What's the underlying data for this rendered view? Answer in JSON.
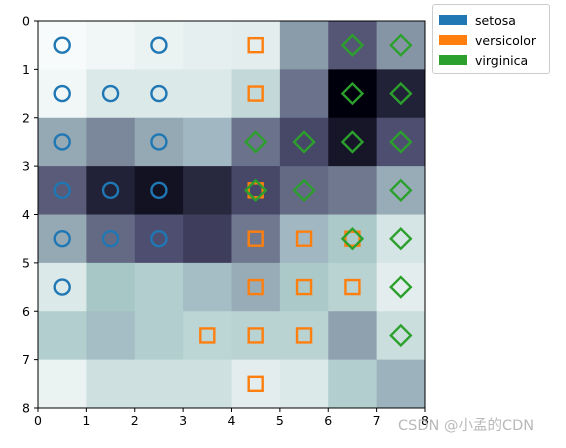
{
  "chart_data": {
    "type": "heatmap",
    "title": "",
    "xlabel": "",
    "ylabel": "",
    "xlim": [
      0,
      8
    ],
    "ylim": [
      8,
      0
    ],
    "y_inverted": true,
    "colormap": "bone_r",
    "xticks": [
      "0",
      "1",
      "2",
      "3",
      "4",
      "5",
      "6",
      "7",
      "8"
    ],
    "yticks": [
      "0",
      "1",
      "2",
      "3",
      "4",
      "5",
      "6",
      "7",
      "8"
    ],
    "grid": false,
    "legend_position": "outside-top-right",
    "cells": [
      [
        0.02,
        0.04,
        0.06,
        0.07,
        0.08,
        0.38,
        0.62,
        0.4
      ],
      [
        0.04,
        0.1,
        0.1,
        0.1,
        0.17,
        0.52,
        1.0,
        0.85
      ],
      [
        0.33,
        0.45,
        0.33,
        0.28,
        0.52,
        0.68,
        0.9,
        0.65
      ],
      [
        0.6,
        0.85,
        0.92,
        0.82,
        0.68,
        0.55,
        0.5,
        0.32
      ],
      [
        0.33,
        0.55,
        0.65,
        0.72,
        0.5,
        0.28,
        0.24,
        0.12
      ],
      [
        0.1,
        0.25,
        0.22,
        0.26,
        0.32,
        0.24,
        0.2,
        0.08
      ],
      [
        0.22,
        0.26,
        0.22,
        0.19,
        0.2,
        0.2,
        0.36,
        0.15
      ],
      [
        0.06,
        0.14,
        0.14,
        0.14,
        0.08,
        0.1,
        0.22,
        0.3
      ]
    ],
    "series": [
      {
        "name": "setosa",
        "color": "#1f77b4",
        "marker": "circle",
        "points": [
          [
            0.5,
            0.5
          ],
          [
            2.5,
            0.5
          ],
          [
            0.5,
            1.5
          ],
          [
            1.5,
            1.5
          ],
          [
            2.5,
            1.5
          ],
          [
            0.5,
            2.5
          ],
          [
            2.5,
            2.5
          ],
          [
            0.5,
            3.5
          ],
          [
            1.5,
            3.5
          ],
          [
            2.5,
            3.5
          ],
          [
            0.5,
            4.5
          ],
          [
            1.5,
            4.5
          ],
          [
            2.5,
            4.5
          ],
          [
            0.5,
            5.5
          ]
        ]
      },
      {
        "name": "versicolor",
        "color": "#ff7f0e",
        "marker": "square",
        "points": [
          [
            4.5,
            0.5
          ],
          [
            4.5,
            1.5
          ],
          [
            4.5,
            3.5
          ],
          [
            4.5,
            4.5
          ],
          [
            5.5,
            4.5
          ],
          [
            6.5,
            4.5
          ],
          [
            4.5,
            5.5
          ],
          [
            5.5,
            5.5
          ],
          [
            6.5,
            5.5
          ],
          [
            3.5,
            6.5
          ],
          [
            4.5,
            6.5
          ],
          [
            5.5,
            6.5
          ],
          [
            4.5,
            7.5
          ]
        ]
      },
      {
        "name": "virginica",
        "color": "#2ca02c",
        "marker": "diamond",
        "points": [
          [
            6.5,
            0.5
          ],
          [
            7.5,
            0.5
          ],
          [
            6.5,
            1.5
          ],
          [
            7.5,
            1.5
          ],
          [
            4.5,
            2.5
          ],
          [
            5.5,
            2.5
          ],
          [
            6.5,
            2.5
          ],
          [
            7.5,
            2.5
          ],
          [
            4.5,
            3.5
          ],
          [
            5.5,
            3.5
          ],
          [
            7.5,
            3.5
          ],
          [
            6.5,
            4.5
          ],
          [
            7.5,
            4.5
          ],
          [
            7.5,
            5.5
          ],
          [
            7.5,
            6.5
          ]
        ]
      }
    ]
  },
  "watermark": "CSDN @小孟的CDN"
}
